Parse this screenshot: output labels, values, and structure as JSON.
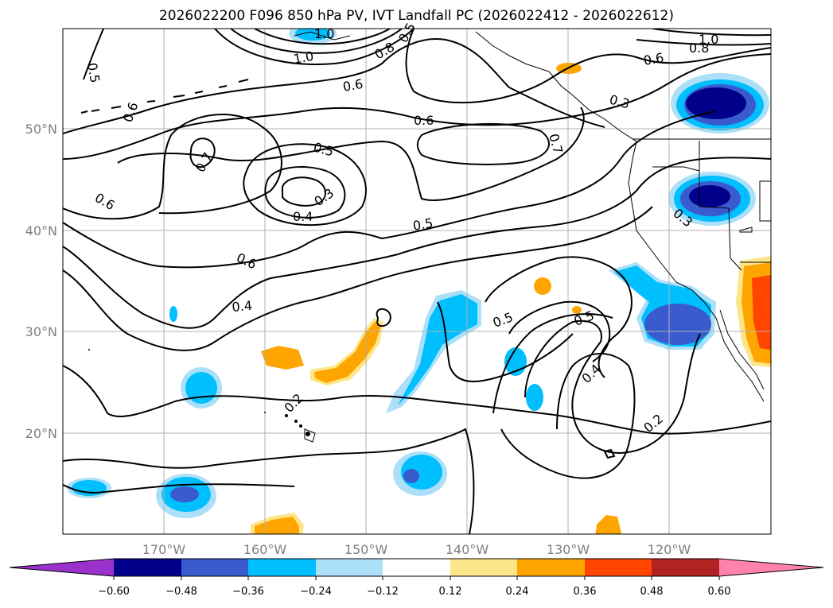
{
  "title": "2026022200 F096 850 hPa PV, IVT Landfall PC (2026022412 - 2026022612)",
  "map": {
    "lat_labels": [
      "50°N",
      "40°N",
      "30°N",
      "20°N"
    ],
    "lon_labels": [
      "170°W",
      "160°W",
      "150°W",
      "140°W",
      "130°W",
      "120°W"
    ],
    "contour_labels": [
      "0.5",
      "0.6",
      "1.0",
      "0.8",
      "0.5",
      "1.0",
      "1.0",
      "0.8",
      "0.6",
      "0.6",
      "0.3",
      "0.7",
      "0.6",
      "0.5",
      "0.7",
      "0.3",
      "0.4",
      "0.5",
      "0.6",
      "0.6",
      "0.4",
      "0.2",
      "0.5",
      "0.5",
      "0.4",
      "0.2",
      "0.3"
    ]
  },
  "colorbar": {
    "colors": [
      "#9932cc",
      "#00008b",
      "#3a5bcd",
      "#00bfff",
      "#ace0f8",
      "#ffffff",
      "#fde68a",
      "#ffa500",
      "#ff4500",
      "#b22222",
      "#ff82ab"
    ],
    "tick_labels": [
      "−0.60",
      "−0.48",
      "−0.36",
      "−0.24",
      "−0.12",
      "0.12",
      "0.24",
      "0.36",
      "0.48",
      "0.60"
    ]
  }
}
